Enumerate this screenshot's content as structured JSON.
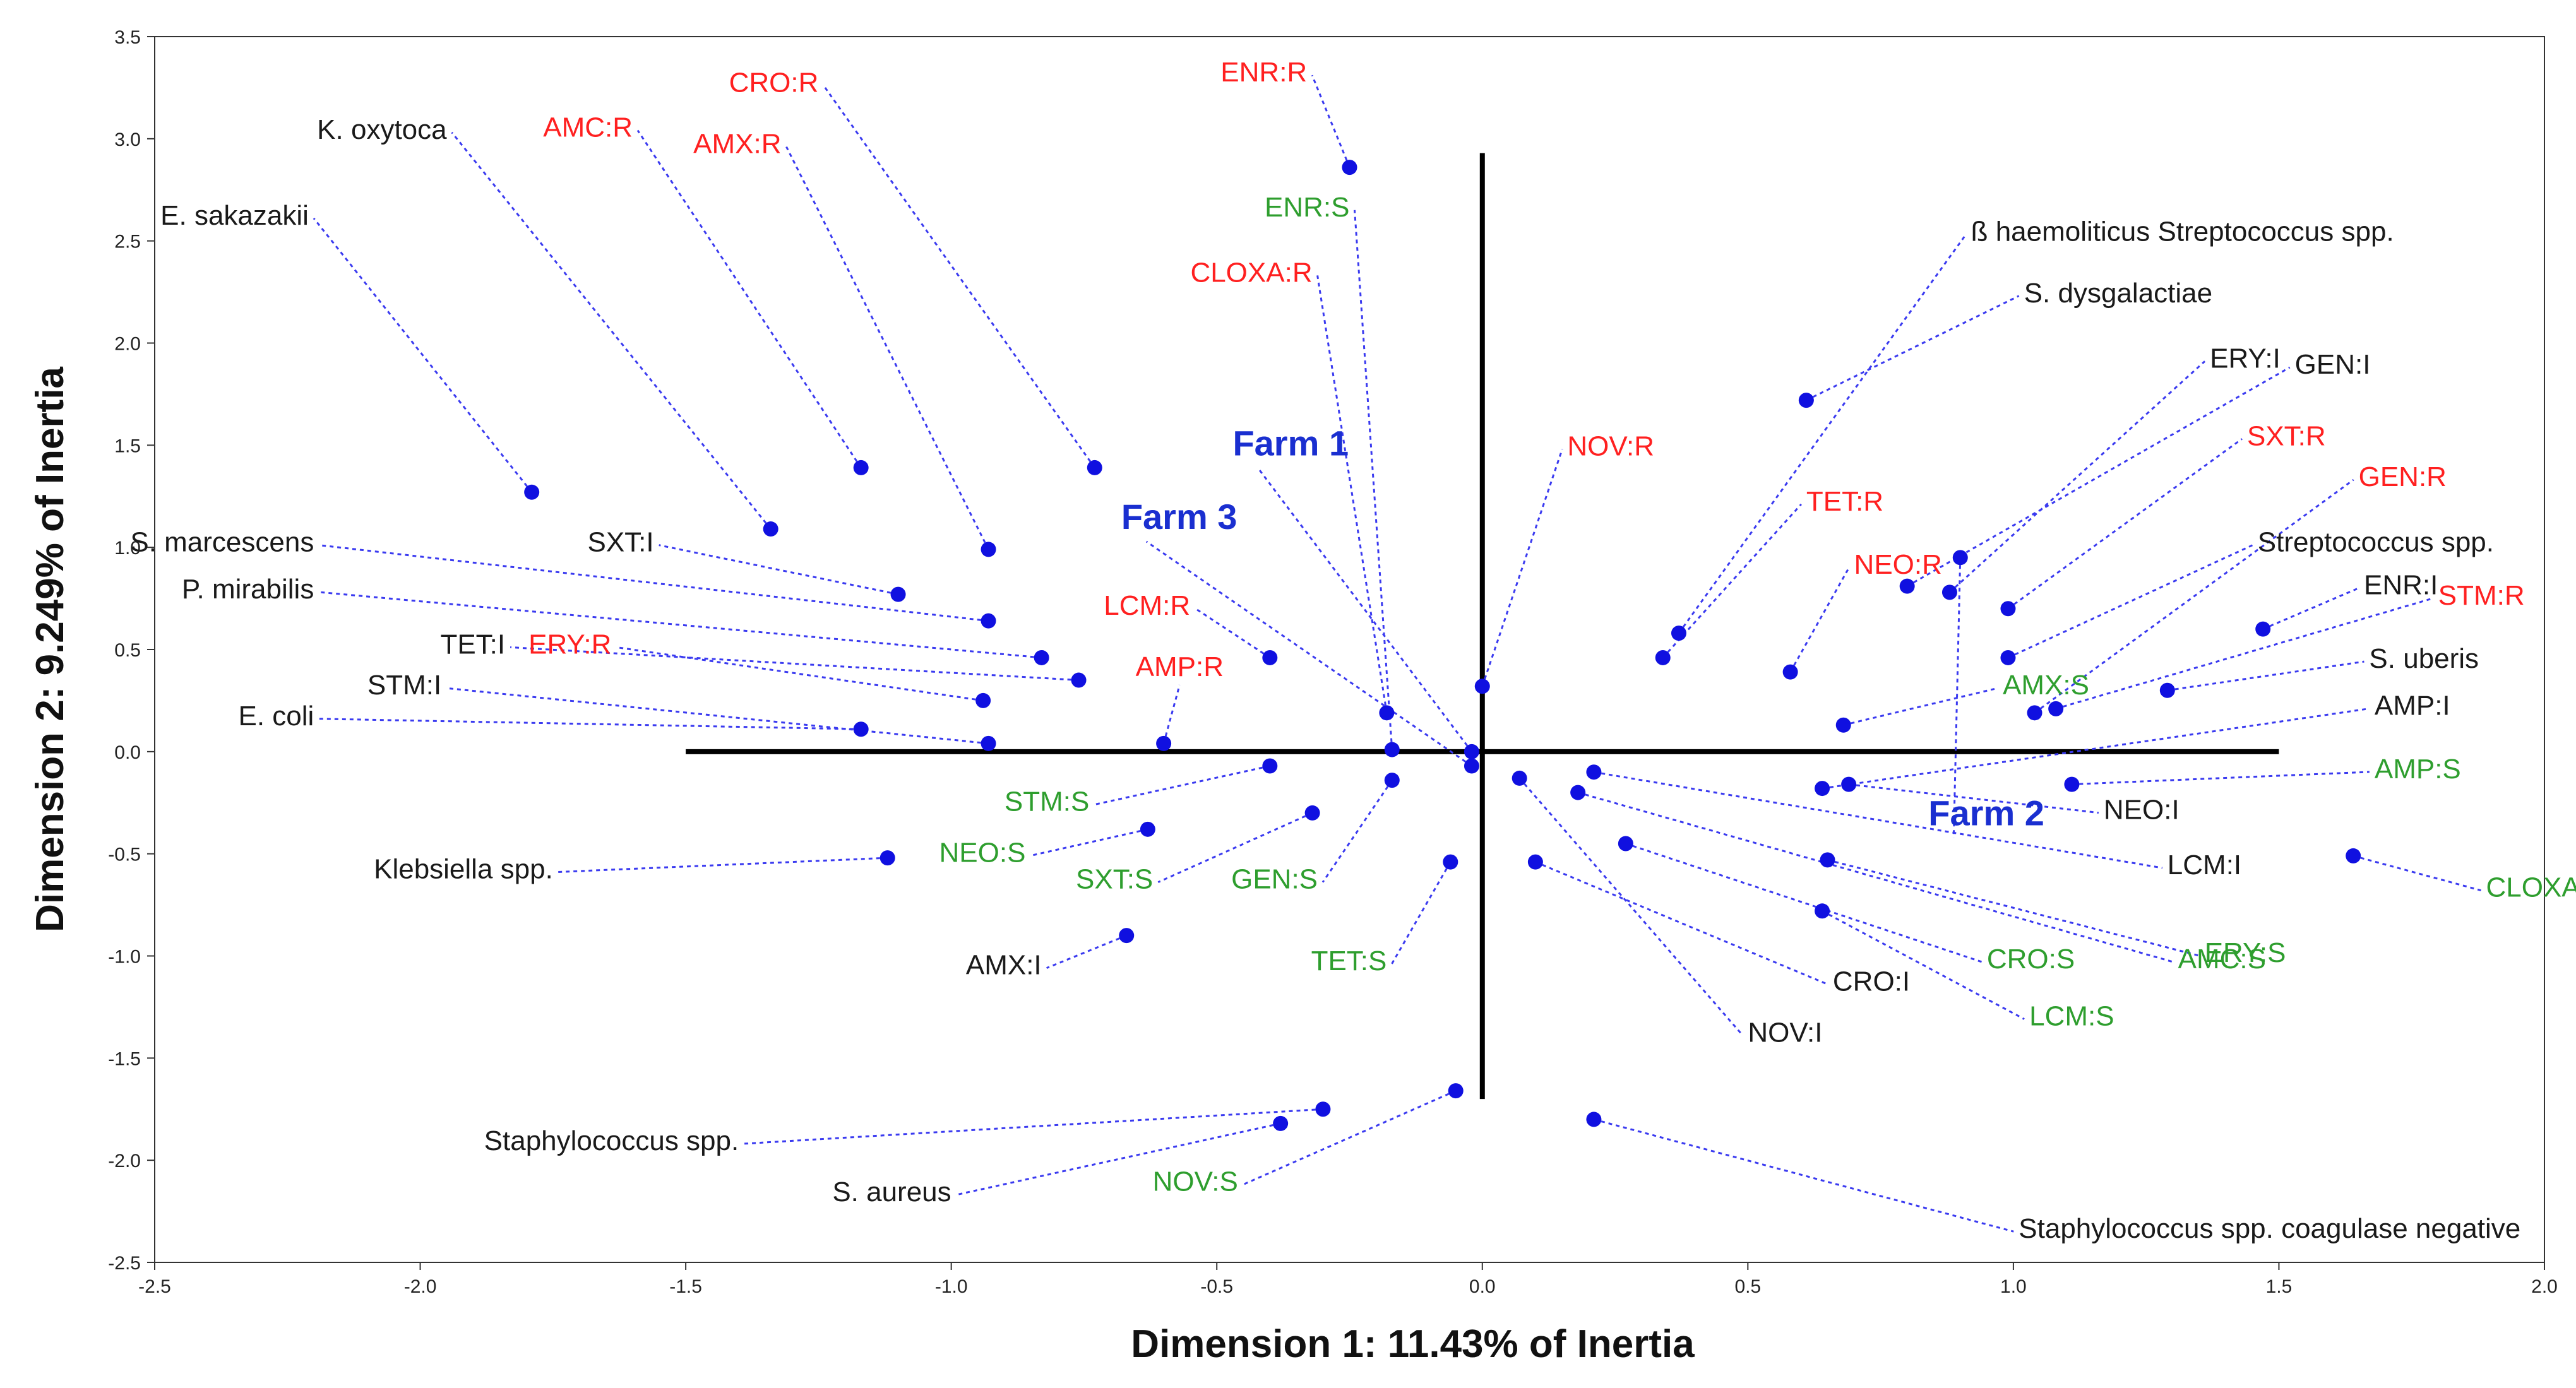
{
  "chart_data": {
    "type": "scatter",
    "title": "",
    "xlabel": "Dimension 1: 11.43% of Inertia",
    "ylabel": "Dimension 2: 9.249% of Inertia",
    "xlim": [
      -2.5,
      2.0
    ],
    "ylim": [
      -2.5,
      3.5
    ],
    "xticks": [
      "-2.5",
      "-2.0",
      "-1.5",
      "-1.0",
      "-0.5",
      "0.0",
      "0.5",
      "1.0",
      "1.5",
      "2.0"
    ],
    "yticks": [
      "3.5",
      "3.0",
      "2.5",
      "2.0",
      "1.5",
      "1.0",
      "0.5",
      "0.0",
      "-0.5",
      "-1.0",
      "-1.5",
      "-2.0",
      "-2.5"
    ],
    "reference_lines": {
      "h_from_x": -1.5,
      "h_to_x": 1.5,
      "v_from_y": -1.7,
      "v_to_y": 2.93
    },
    "colors": {
      "point": "#1010e0",
      "leader": "#3a3af0",
      "organism": "#1a1a1a",
      "resistant": "#ff2020",
      "susceptible": "#2e9e2e",
      "intermediate": "#1a1a1a",
      "farm": "#1a2fd0",
      "axis": "#000000"
    },
    "points": [
      {
        "label": "K. oxytoca",
        "kind": "organism",
        "x": -1.34,
        "y": 1.09,
        "lx": -1.95,
        "ly": 3.0
      },
      {
        "label": "E. sakazakii",
        "kind": "organism",
        "x": -1.79,
        "y": 1.27,
        "lx": -2.21,
        "ly": 2.58
      },
      {
        "label": "S. marcescens",
        "kind": "organism",
        "x": -0.93,
        "y": 0.64,
        "lx": -2.2,
        "ly": 0.98
      },
      {
        "label": "P. mirabilis",
        "kind": "organism",
        "x": -0.83,
        "y": 0.46,
        "lx": -2.2,
        "ly": 0.75
      },
      {
        "label": "E. coli",
        "kind": "organism",
        "x": -1.17,
        "y": 0.11,
        "lx": -2.2,
        "ly": 0.13
      },
      {
        "label": "Klebsiella spp.",
        "kind": "organism",
        "x": -1.12,
        "y": -0.52,
        "lx": -1.75,
        "ly": -0.62
      },
      {
        "label": "Staphylococcus spp.",
        "kind": "organism",
        "x": -0.3,
        "y": -1.75,
        "lx": -1.4,
        "ly": -1.95
      },
      {
        "label": "S. aureus",
        "kind": "organism",
        "x": -0.38,
        "y": -1.82,
        "lx": -1.0,
        "ly": -2.2
      },
      {
        "label": "Staphylococcus spp. coagulase negative",
        "kind": "organism",
        "x": 0.21,
        "y": -1.8,
        "lx": 1.01,
        "ly": -2.38
      },
      {
        "label": "ß haemoliticus Streptococcus spp.",
        "kind": "organism",
        "x": 0.37,
        "y": 0.58,
        "lx": 0.92,
        "ly": 2.5
      },
      {
        "label": "S. dysgalactiae",
        "kind": "organism",
        "x": 0.61,
        "y": 1.72,
        "lx": 1.02,
        "ly": 2.2
      },
      {
        "label": "Streptococcus spp.",
        "kind": "organism",
        "x": 0.99,
        "y": 0.46,
        "lx": 1.46,
        "ly": 0.98
      },
      {
        "label": "S. uberis",
        "kind": "organism",
        "x": 1.29,
        "y": 0.3,
        "lx": 1.67,
        "ly": 0.41
      },
      {
        "label": "CRO:R",
        "kind": "resistant",
        "x": -0.73,
        "y": 1.39,
        "lx": -1.25,
        "ly": 3.23
      },
      {
        "label": "AMC:R",
        "kind": "resistant",
        "x": -1.17,
        "y": 1.39,
        "lx": -1.6,
        "ly": 3.01
      },
      {
        "label": "AMX:R",
        "kind": "resistant",
        "x": -0.93,
        "y": 0.99,
        "lx": -1.32,
        "ly": 2.93
      },
      {
        "label": "ENR:R",
        "kind": "resistant",
        "x": -0.25,
        "y": 2.86,
        "lx": -0.33,
        "ly": 3.28
      },
      {
        "label": "CLOXA:R",
        "kind": "resistant",
        "x": -0.18,
        "y": 0.19,
        "lx": -0.32,
        "ly": 2.3
      },
      {
        "label": "NOV:R",
        "kind": "resistant",
        "x": 0.0,
        "y": 0.32,
        "lx": 0.16,
        "ly": 1.45
      },
      {
        "label": "TET:R",
        "kind": "resistant",
        "x": 0.34,
        "y": 0.46,
        "lx": 0.61,
        "ly": 1.18
      },
      {
        "label": "NEO:R",
        "kind": "resistant",
        "x": 0.58,
        "y": 0.39,
        "lx": 0.7,
        "ly": 0.87
      },
      {
        "label": "LCM:R",
        "kind": "resistant",
        "x": -0.4,
        "y": 0.46,
        "lx": -0.55,
        "ly": 0.67
      },
      {
        "label": "AMP:R",
        "kind": "resistant",
        "x": -0.6,
        "y": 0.04,
        "lx": -0.57,
        "ly": 0.37
      },
      {
        "label": "ERY:R",
        "kind": "resistant",
        "x": -0.94,
        "y": 0.25,
        "lx": -1.64,
        "ly": 0.48
      },
      {
        "label": "SXT:R",
        "kind": "resistant",
        "x": 0.99,
        "y": 0.7,
        "lx": 1.44,
        "ly": 1.5
      },
      {
        "label": "GEN:R",
        "kind": "resistant",
        "x": 1.04,
        "y": 0.19,
        "lx": 1.65,
        "ly": 1.3
      },
      {
        "label": "STM:R",
        "kind": "resistant",
        "x": 1.08,
        "y": 0.21,
        "lx": 1.8,
        "ly": 0.72
      },
      {
        "label": "ENR:S",
        "kind": "susceptible",
        "x": -0.17,
        "y": 0.01,
        "lx": -0.25,
        "ly": 2.62
      },
      {
        "label": "AMX:S",
        "kind": "susceptible",
        "x": 0.68,
        "y": 0.13,
        "lx": 0.98,
        "ly": 0.28
      },
      {
        "label": "AMP:S",
        "kind": "susceptible",
        "x": 1.11,
        "y": -0.16,
        "lx": 1.68,
        "ly": -0.13
      },
      {
        "label": "CLOXA:S",
        "kind": "susceptible",
        "x": 1.64,
        "y": -0.51,
        "lx": 1.89,
        "ly": -0.71
      },
      {
        "label": "STM:S",
        "kind": "susceptible",
        "x": -0.4,
        "y": -0.07,
        "lx": -0.74,
        "ly": -0.29
      },
      {
        "label": "NEO:S",
        "kind": "susceptible",
        "x": -0.63,
        "y": -0.38,
        "lx": -0.86,
        "ly": -0.54
      },
      {
        "label": "SXT:S",
        "kind": "susceptible",
        "x": -0.32,
        "y": -0.3,
        "lx": -0.62,
        "ly": -0.67
      },
      {
        "label": "GEN:S",
        "kind": "susceptible",
        "x": -0.17,
        "y": -0.14,
        "lx": -0.31,
        "ly": -0.67
      },
      {
        "label": "TET:S",
        "kind": "susceptible",
        "x": -0.06,
        "y": -0.54,
        "lx": -0.18,
        "ly": -1.07
      },
      {
        "label": "NOV:S",
        "kind": "susceptible",
        "x": -0.05,
        "y": -1.66,
        "lx": -0.46,
        "ly": -2.15
      },
      {
        "label": "CRO:S",
        "kind": "susceptible",
        "x": 0.27,
        "y": -0.45,
        "lx": 0.95,
        "ly": -1.06
      },
      {
        "label": "LCM:S",
        "kind": "susceptible",
        "x": 0.64,
        "y": -0.78,
        "lx": 1.03,
        "ly": -1.34
      },
      {
        "label": "AMC:S",
        "kind": "susceptible",
        "x": 0.18,
        "y": -0.2,
        "lx": 1.31,
        "ly": -1.06
      },
      {
        "label": "ERY:S",
        "kind": "susceptible",
        "x": 0.65,
        "y": -0.53,
        "lx": 1.36,
        "ly": -1.03
      },
      {
        "label": "SXT:I",
        "kind": "intermediate",
        "x": -1.1,
        "y": 0.77,
        "lx": -1.56,
        "ly": 0.98
      },
      {
        "label": "TET:I",
        "kind": "intermediate",
        "x": -0.76,
        "y": 0.35,
        "lx": -1.84,
        "ly": 0.48
      },
      {
        "label": "STM:I",
        "kind": "intermediate",
        "x": -0.93,
        "y": 0.04,
        "lx": -1.96,
        "ly": 0.28
      },
      {
        "label": "AMX:I",
        "kind": "intermediate",
        "x": -0.67,
        "y": -0.9,
        "lx": -0.83,
        "ly": -1.09
      },
      {
        "label": "CRO:I",
        "kind": "intermediate",
        "x": 0.1,
        "y": -0.54,
        "lx": 0.66,
        "ly": -1.17
      },
      {
        "label": "NOV:I",
        "kind": "intermediate",
        "x": 0.07,
        "y": -0.13,
        "lx": 0.5,
        "ly": -1.42
      },
      {
        "label": "NEO:I",
        "kind": "intermediate",
        "x": 0.69,
        "y": -0.16,
        "lx": 1.17,
        "ly": -0.33
      },
      {
        "label": "LCM:I",
        "kind": "intermediate",
        "x": 0.21,
        "y": -0.1,
        "lx": 1.29,
        "ly": -0.6
      },
      {
        "label": "AMP:I",
        "kind": "intermediate",
        "x": 0.64,
        "y": -0.18,
        "lx": 1.68,
        "ly": 0.18
      },
      {
        "label": "ERY:I",
        "kind": "intermediate",
        "x": 0.88,
        "y": 0.78,
        "lx": 1.37,
        "ly": 1.88
      },
      {
        "label": "GEN:I",
        "kind": "intermediate",
        "x": 0.8,
        "y": 0.81,
        "lx": 1.53,
        "ly": 1.85
      },
      {
        "label": "ENR:I",
        "kind": "intermediate",
        "x": 1.47,
        "y": 0.6,
        "lx": 1.66,
        "ly": 0.77
      }
    ],
    "farms": [
      {
        "label": "Farm 1",
        "x": -0.02,
        "y": 0.0,
        "lx": -0.47,
        "ly": 1.45
      },
      {
        "label": "Farm 3",
        "x": -0.02,
        "y": -0.07,
        "lx": -0.68,
        "ly": 1.09
      },
      {
        "label": "Farm 2",
        "x": 0.9,
        "y": 0.95,
        "lx": 0.84,
        "ly": -0.36
      }
    ]
  }
}
